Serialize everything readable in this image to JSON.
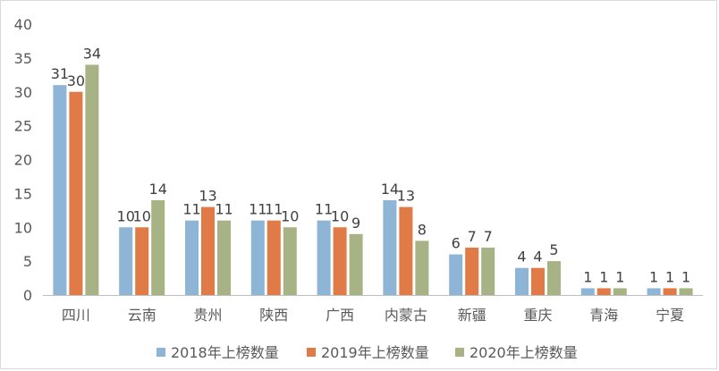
{
  "chart_data": {
    "type": "bar",
    "categories": [
      "四川",
      "云南",
      "贵州",
      "陕西",
      "广西",
      "内蒙古",
      "新疆",
      "重庆",
      "青海",
      "宁夏"
    ],
    "series": [
      {
        "name": "2018年上榜数量",
        "color": "#8eb4d6",
        "values": [
          31,
          10,
          11,
          11,
          11,
          14,
          6,
          4,
          1,
          1
        ]
      },
      {
        "name": "2019年上榜数量",
        "color": "#e07b47",
        "values": [
          30,
          10,
          13,
          11,
          10,
          13,
          7,
          4,
          1,
          1
        ]
      },
      {
        "name": "2020年上榜数量",
        "color": "#a7b384",
        "values": [
          34,
          14,
          11,
          10,
          9,
          8,
          7,
          5,
          1,
          1
        ]
      }
    ],
    "ylim": [
      0,
      40
    ],
    "yticks": [
      0,
      5,
      10,
      15,
      20,
      25,
      30,
      35,
      40
    ],
    "grid": false,
    "legend_position": "bottom",
    "axis_color": "#bfbfbf"
  }
}
